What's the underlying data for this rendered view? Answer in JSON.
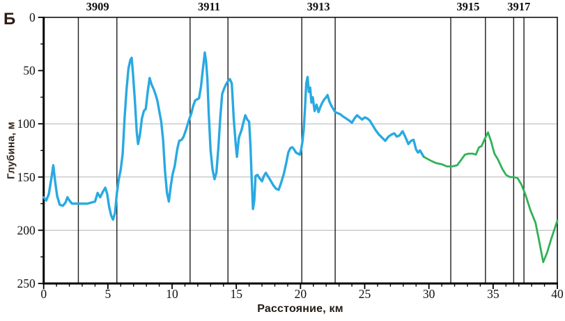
{
  "figure_label": "Б",
  "colors": {
    "blue_series": "#29a9e1",
    "green_series": "#2fb256",
    "grid": "#b3b3b3",
    "axis": "#000000",
    "station_line": "#1c1c1c",
    "tick_text": "#111111",
    "title_text": "#33261c"
  },
  "chart_data": {
    "type": "line",
    "title": "",
    "xlabel": "Расстояние, км",
    "ylabel": "Глубина, м",
    "xlim": [
      0,
      40
    ],
    "ylim_depth": [
      0,
      250
    ],
    "y_inverted": true,
    "grid_on": true,
    "grid_depths_m": [
      100,
      150,
      200
    ],
    "x_major_ticks": [
      0,
      5,
      10,
      15,
      20,
      25,
      30,
      35,
      40
    ],
    "x_minor_step_km": 1,
    "y_major_ticks": [
      0,
      50,
      100,
      150,
      200,
      250
    ],
    "y_minor_step_m": 25,
    "legend_position": "none",
    "stations": [
      {
        "label": "3909",
        "from_km": 2.7,
        "to_km": 5.7
      },
      {
        "label": "3911",
        "from_km": 11.4,
        "to_km": 14.35
      },
      {
        "label": "3913",
        "from_km": 20.1,
        "to_km": 22.7
      },
      {
        "label": "3915",
        "from_km": 31.7,
        "to_km": 34.4
      },
      {
        "label": "3917",
        "from_km": 36.6,
        "to_km": 37.4
      }
    ],
    "series": [
      {
        "name": "depth-profile-measured",
        "color": "#29a9e1",
        "width": 3.4,
        "points_km_m": [
          [
            0,
            169
          ],
          [
            0.2,
            172
          ],
          [
            0.4,
            166
          ],
          [
            0.6,
            151
          ],
          [
            0.75,
            139
          ],
          [
            0.9,
            155
          ],
          [
            1.05,
            168
          ],
          [
            1.25,
            176
          ],
          [
            1.5,
            177
          ],
          [
            1.7,
            174
          ],
          [
            1.85,
            169
          ],
          [
            2.0,
            172
          ],
          [
            2.2,
            175
          ],
          [
            2.5,
            175
          ],
          [
            2.8,
            175
          ],
          [
            3.1,
            175
          ],
          [
            3.4,
            175
          ],
          [
            3.7,
            174
          ],
          [
            4.0,
            173
          ],
          [
            4.2,
            165
          ],
          [
            4.4,
            169
          ],
          [
            4.6,
            164
          ],
          [
            4.8,
            160
          ],
          [
            4.95,
            166
          ],
          [
            5.1,
            178
          ],
          [
            5.25,
            186
          ],
          [
            5.4,
            190
          ],
          [
            5.55,
            184
          ],
          [
            5.7,
            165
          ],
          [
            5.85,
            152
          ],
          [
            6.0,
            143
          ],
          [
            6.15,
            128
          ],
          [
            6.3,
            95
          ],
          [
            6.45,
            68
          ],
          [
            6.6,
            48
          ],
          [
            6.75,
            40
          ],
          [
            6.85,
            38
          ],
          [
            6.95,
            52
          ],
          [
            7.1,
            78
          ],
          [
            7.25,
            108
          ],
          [
            7.35,
            119
          ],
          [
            7.5,
            110
          ],
          [
            7.65,
            95
          ],
          [
            7.8,
            88
          ],
          [
            7.95,
            86
          ],
          [
            8.1,
            70
          ],
          [
            8.25,
            57
          ],
          [
            8.4,
            63
          ],
          [
            8.55,
            67
          ],
          [
            8.7,
            72
          ],
          [
            8.85,
            78
          ],
          [
            9.0,
            88
          ],
          [
            9.15,
            98
          ],
          [
            9.3,
            115
          ],
          [
            9.45,
            145
          ],
          [
            9.6,
            165
          ],
          [
            9.75,
            173
          ],
          [
            9.9,
            158
          ],
          [
            10.05,
            147
          ],
          [
            10.2,
            140
          ],
          [
            10.4,
            124
          ],
          [
            10.55,
            116
          ],
          [
            10.75,
            115
          ],
          [
            10.9,
            112
          ],
          [
            11.1,
            105
          ],
          [
            11.3,
            97
          ],
          [
            11.5,
            90
          ],
          [
            11.65,
            83
          ],
          [
            11.8,
            78
          ],
          [
            11.95,
            77
          ],
          [
            12.1,
            76
          ],
          [
            12.25,
            65
          ],
          [
            12.4,
            48
          ],
          [
            12.55,
            33
          ],
          [
            12.65,
            42
          ],
          [
            12.75,
            58
          ],
          [
            12.85,
            90
          ],
          [
            13.0,
            125
          ],
          [
            13.15,
            143
          ],
          [
            13.3,
            152
          ],
          [
            13.45,
            146
          ],
          [
            13.6,
            123
          ],
          [
            13.75,
            95
          ],
          [
            13.9,
            72
          ],
          [
            14.05,
            67
          ],
          [
            14.2,
            63
          ],
          [
            14.35,
            60
          ],
          [
            14.5,
            58
          ],
          [
            14.65,
            62
          ],
          [
            14.8,
            95
          ],
          [
            14.95,
            119
          ],
          [
            15.05,
            131
          ],
          [
            15.2,
            113
          ],
          [
            15.4,
            106
          ],
          [
            15.55,
            99
          ],
          [
            15.7,
            92
          ],
          [
            15.85,
            96
          ],
          [
            16.0,
            98
          ],
          [
            16.1,
            120
          ],
          [
            16.2,
            152
          ],
          [
            16.3,
            180
          ],
          [
            16.4,
            172
          ],
          [
            16.5,
            149
          ],
          [
            16.65,
            148
          ],
          [
            16.8,
            151
          ],
          [
            17.0,
            154
          ],
          [
            17.15,
            149
          ],
          [
            17.3,
            146
          ],
          [
            17.5,
            150
          ],
          [
            17.7,
            154
          ],
          [
            17.9,
            158
          ],
          [
            18.1,
            161
          ],
          [
            18.3,
            162
          ],
          [
            18.5,
            155
          ],
          [
            18.7,
            147
          ],
          [
            18.9,
            136
          ],
          [
            19.05,
            127
          ],
          [
            19.2,
            123
          ],
          [
            19.35,
            122
          ],
          [
            19.5,
            124
          ],
          [
            19.65,
            127
          ],
          [
            19.8,
            128
          ],
          [
            19.95,
            129
          ],
          [
            20.05,
            124
          ],
          [
            20.15,
            117
          ],
          [
            20.25,
            105
          ],
          [
            20.35,
            85
          ],
          [
            20.45,
            62
          ],
          [
            20.55,
            56
          ],
          [
            20.65,
            70
          ],
          [
            20.75,
            66
          ],
          [
            20.85,
            80
          ],
          [
            20.95,
            75
          ],
          [
            21.1,
            88
          ],
          [
            21.25,
            82
          ],
          [
            21.4,
            89
          ],
          [
            21.55,
            84
          ],
          [
            21.7,
            80
          ],
          [
            21.85,
            77
          ],
          [
            22.0,
            75
          ],
          [
            22.1,
            73
          ],
          [
            22.25,
            79
          ],
          [
            22.4,
            83
          ],
          [
            22.55,
            86
          ],
          [
            22.7,
            89
          ],
          [
            22.9,
            90
          ],
          [
            23.1,
            91
          ],
          [
            23.3,
            93
          ],
          [
            23.55,
            95
          ],
          [
            23.8,
            97
          ],
          [
            24.0,
            99
          ],
          [
            24.2,
            95
          ],
          [
            24.4,
            92
          ],
          [
            24.6,
            94
          ],
          [
            24.8,
            96
          ],
          [
            25.0,
            94
          ],
          [
            25.2,
            95
          ],
          [
            25.4,
            97
          ],
          [
            25.6,
            101
          ],
          [
            25.85,
            106
          ],
          [
            26.1,
            110
          ],
          [
            26.35,
            113
          ],
          [
            26.6,
            116
          ],
          [
            26.85,
            112
          ],
          [
            27.1,
            110
          ],
          [
            27.3,
            109
          ],
          [
            27.5,
            112
          ],
          [
            27.7,
            111
          ],
          [
            27.95,
            107
          ],
          [
            28.15,
            112
          ],
          [
            28.4,
            119
          ],
          [
            28.6,
            116
          ],
          [
            28.8,
            115
          ],
          [
            29.0,
            124
          ],
          [
            29.15,
            127
          ],
          [
            29.3,
            125
          ],
          [
            29.45,
            128
          ],
          [
            29.6,
            131
          ]
        ]
      },
      {
        "name": "depth-profile-extended",
        "color": "#2fb256",
        "width": 2.8,
        "points_km_m": [
          [
            29.6,
            131
          ],
          [
            29.9,
            133
          ],
          [
            30.2,
            135
          ],
          [
            30.6,
            137
          ],
          [
            31.0,
            138
          ],
          [
            31.4,
            140
          ],
          [
            31.8,
            140
          ],
          [
            32.2,
            139
          ],
          [
            32.5,
            134
          ],
          [
            32.8,
            129
          ],
          [
            33.1,
            128
          ],
          [
            33.4,
            128
          ],
          [
            33.65,
            129
          ],
          [
            33.9,
            122
          ],
          [
            34.1,
            121
          ],
          [
            34.35,
            114
          ],
          [
            34.6,
            108
          ],
          [
            34.85,
            117
          ],
          [
            35.1,
            128
          ],
          [
            35.4,
            134
          ],
          [
            35.7,
            142
          ],
          [
            36.0,
            148
          ],
          [
            36.3,
            150
          ],
          [
            36.6,
            150
          ],
          [
            36.9,
            151
          ],
          [
            37.2,
            157
          ],
          [
            37.5,
            166
          ],
          [
            37.9,
            181
          ],
          [
            38.3,
            193
          ],
          [
            38.6,
            211
          ],
          [
            38.9,
            230
          ],
          [
            39.2,
            221
          ],
          [
            39.5,
            209
          ],
          [
            39.75,
            200
          ],
          [
            40.0,
            191
          ]
        ]
      }
    ]
  }
}
